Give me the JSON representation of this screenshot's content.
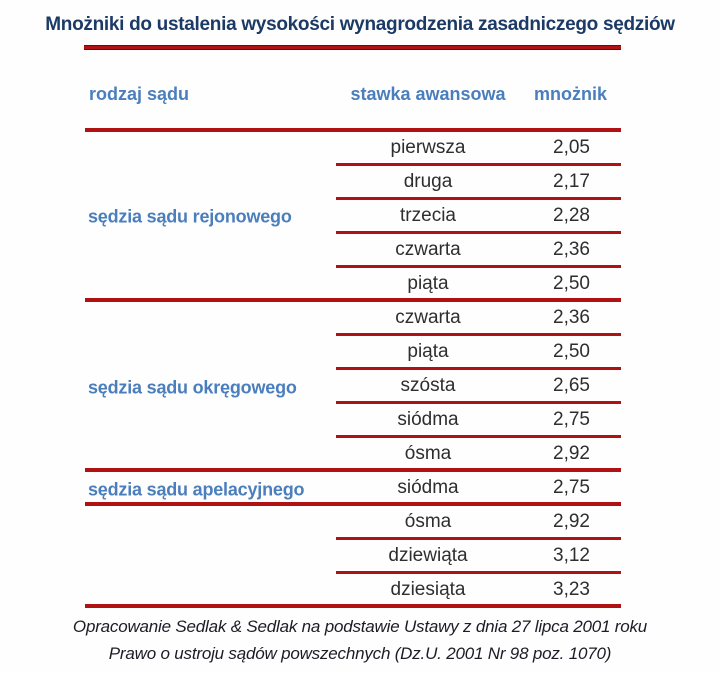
{
  "title": "Mnożniki do ustalenia wysokości wynagrodzenia zasadniczego sędziów",
  "header": {
    "court": "rodzaj sądu",
    "rate": "stawka awansowa",
    "multiplier": "mnożnik"
  },
  "chart_data": {
    "type": "table",
    "title": "Mnożniki do ustalenia wysokości wynagrodzenia zasadniczego sędziów",
    "columns": [
      "rodzaj sądu",
      "stawka awansowa",
      "mnożnik"
    ],
    "groups": [
      {
        "court": "sędzia sądu rejonowego",
        "rows": [
          {
            "rate": "pierwsza",
            "value": "2,05"
          },
          {
            "rate": "druga",
            "value": "2,17"
          },
          {
            "rate": "trzecia",
            "value": "2,28"
          },
          {
            "rate": "czwarta",
            "value": "2,36"
          },
          {
            "rate": "piąta",
            "value": "2,50"
          }
        ]
      },
      {
        "court": "sędzia sądu okręgowego",
        "rows": [
          {
            "rate": "czwarta",
            "value": "2,36"
          },
          {
            "rate": "piąta",
            "value": "2,50"
          },
          {
            "rate": "szósta",
            "value": "2,65"
          },
          {
            "rate": "siódma",
            "value": "2,75"
          },
          {
            "rate": "ósma",
            "value": "2,92"
          }
        ]
      },
      {
        "court": "sędzia sądu apelacyjnego",
        "rows": [
          {
            "rate": "siódma",
            "value": "2,75"
          },
          {
            "rate": "ósma",
            "value": "2,92"
          },
          {
            "rate": "dziewiąta",
            "value": "3,12"
          },
          {
            "rate": "dziesiąta",
            "value": "3,23"
          }
        ]
      }
    ]
  },
  "footer": {
    "line1": "Opracowanie Sedlak & Sedlak na podstawie Ustawy z dnia 27 lipca 2001 roku",
    "line2": "Prawo o ustroju sądów powszechnych (Dz.U. 2001 Nr 98 poz. 1070)"
  },
  "colors": {
    "title_navy": "#1b3a66",
    "header_blue": "#4a7ebc",
    "line_red": "#b01213",
    "text_dark": "#2e2e2e"
  }
}
